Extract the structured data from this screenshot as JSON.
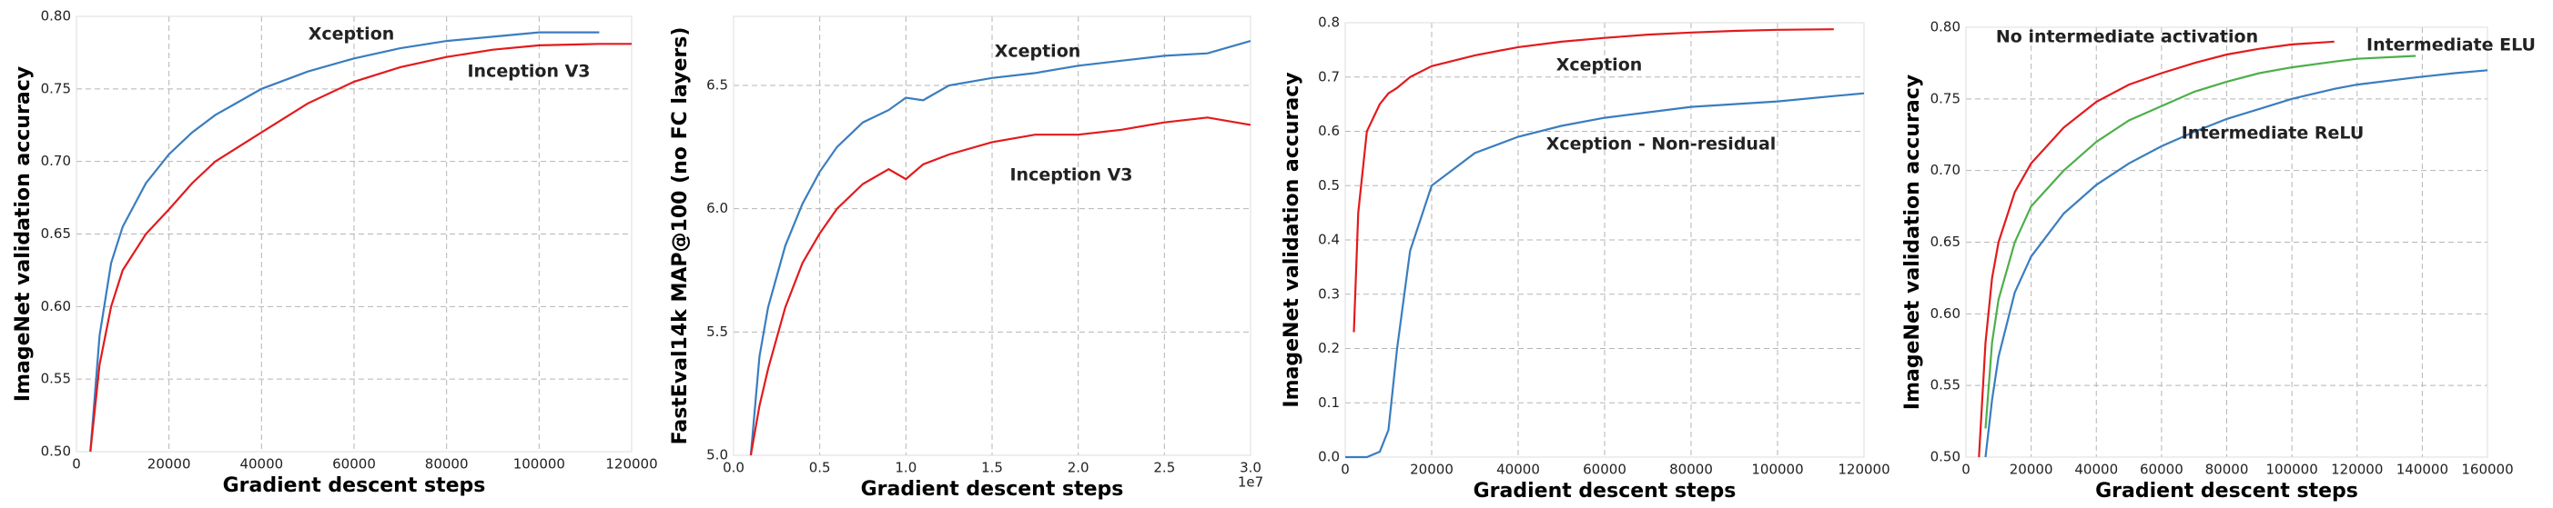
{
  "chart_data": [
    {
      "type": "line",
      "x_label": "Gradient descent steps",
      "y_label": "ImageNet validation accuracy",
      "x": [
        3000,
        5000,
        7500,
        10000,
        15000,
        20000,
        25000,
        30000,
        40000,
        50000,
        60000,
        70000,
        80000,
        90000,
        100000,
        113000,
        120000
      ],
      "xlim": [
        0,
        120000
      ],
      "xticks": [
        0,
        20000,
        40000,
        60000,
        80000,
        100000,
        120000
      ],
      "ylim": [
        0.5,
        0.8
      ],
      "yticks": [
        {
          "value": 0.5,
          "label": "0.50"
        },
        0.55,
        {
          "value": 0.6,
          "label": "0.60"
        },
        0.65,
        {
          "value": 0.7,
          "label": "0.70"
        },
        0.75,
        {
          "value": 0.8,
          "label": "0.80"
        }
      ],
      "grid": true,
      "series": [
        {
          "name": "Xception",
          "color": "#3a7dbf",
          "values": [
            0.5,
            0.58,
            0.63,
            0.655,
            0.685,
            0.705,
            0.72,
            0.732,
            0.75,
            0.762,
            0.771,
            0.778,
            0.783,
            0.786,
            0.789,
            0.789,
            null
          ]
        },
        {
          "name": "Inception V3",
          "color": "#e31a1c",
          "values": [
            0.5,
            0.56,
            0.6,
            0.625,
            0.65,
            0.667,
            0.685,
            0.7,
            0.72,
            0.74,
            0.755,
            0.765,
            0.772,
            0.777,
            0.78,
            0.781,
            0.781
          ]
        }
      ]
    },
    {
      "type": "line",
      "x_label": "Gradient descent steps",
      "y_label": "FastEval14k MAP@100 (no FC layers)",
      "x_offset_label": "1e7",
      "x": [
        0.1,
        0.15,
        0.2,
        0.3,
        0.4,
        0.5,
        0.6,
        0.75,
        0.9,
        1.0,
        1.1,
        1.25,
        1.5,
        1.75,
        2.0,
        2.25,
        2.5,
        2.75,
        3.0
      ],
      "xlim": [
        0,
        3.0
      ],
      "xticks": [
        {
          "value": 0,
          "label": "0.0"
        },
        0.5,
        {
          "value": 1,
          "label": "1.0"
        },
        1.5,
        {
          "value": 2,
          "label": "2.0"
        },
        2.5,
        {
          "value": 3,
          "label": "3.0"
        }
      ],
      "ylim": [
        5.0,
        6.78
      ],
      "yticks": [
        {
          "value": 5,
          "label": "5.0"
        },
        5.5,
        {
          "value": 6,
          "label": "6.0"
        },
        6.5
      ],
      "grid": true,
      "series": [
        {
          "name": "Xception",
          "color": "#3a7dbf",
          "values": [
            5.0,
            5.4,
            5.6,
            5.85,
            6.02,
            6.15,
            6.25,
            6.35,
            6.4,
            6.45,
            6.44,
            6.5,
            6.53,
            6.55,
            6.58,
            6.6,
            6.62,
            6.63,
            6.68
          ]
        },
        {
          "name": "Inception V3",
          "color": "#e31a1c",
          "values": [
            5.0,
            5.2,
            5.35,
            5.6,
            5.78,
            5.9,
            6.0,
            6.1,
            6.16,
            6.12,
            6.18,
            6.22,
            6.27,
            6.3,
            6.3,
            6.32,
            6.35,
            6.37,
            6.34
          ]
        }
      ]
    },
    {
      "type": "line",
      "x_label": "Gradient descent steps",
      "y_label": "ImageNet validation accuracy",
      "x": [
        0,
        2000,
        3000,
        5000,
        8000,
        10000,
        12000,
        15000,
        20000,
        30000,
        40000,
        50000,
        60000,
        70000,
        80000,
        90000,
        100000,
        113000,
        120000
      ],
      "xlim": [
        0,
        120000
      ],
      "xticks": [
        0,
        20000,
        40000,
        60000,
        80000,
        100000,
        120000
      ],
      "ylim": [
        0,
        0.8
      ],
      "yticks": [
        {
          "value": 0,
          "label": "0.0"
        },
        0.1,
        0.2,
        0.3,
        0.4,
        0.5,
        0.6,
        0.7,
        0.8
      ],
      "grid": true,
      "series": [
        {
          "name": "Xception",
          "color": "#e31a1c",
          "values": [
            null,
            0.23,
            0.45,
            0.6,
            0.65,
            0.67,
            0.68,
            0.7,
            0.72,
            0.74,
            0.755,
            0.765,
            0.772,
            0.778,
            0.782,
            0.785,
            0.787,
            0.788,
            null
          ]
        },
        {
          "name": "Xception - Non-residual",
          "color": "#3a7dbf",
          "values": [
            0.0,
            0.0,
            0.0,
            0.0,
            0.01,
            0.05,
            0.2,
            0.38,
            0.5,
            0.56,
            0.59,
            0.61,
            0.625,
            0.635,
            0.645,
            0.65,
            0.655,
            0.665,
            0.67
          ]
        }
      ]
    },
    {
      "type": "line",
      "x_label": "Gradient descent steps",
      "y_label": "ImageNet validation accuracy",
      "x": [
        4000,
        6000,
        8000,
        10000,
        15000,
        20000,
        30000,
        40000,
        50000,
        60000,
        70000,
        80000,
        90000,
        100000,
        113000,
        120000,
        138000,
        150000,
        160000
      ],
      "xlim": [
        0,
        160000
      ],
      "xticks": [
        0,
        20000,
        40000,
        60000,
        80000,
        100000,
        120000,
        140000,
        160000
      ],
      "ylim": [
        0.5,
        0.8
      ],
      "yticks": [
        {
          "value": 0.5,
          "label": "0.50"
        },
        0.55,
        {
          "value": 0.6,
          "label": "0.60"
        },
        0.65,
        {
          "value": 0.7,
          "label": "0.70"
        },
        0.75,
        {
          "value": 0.8,
          "label": "0.80"
        }
      ],
      "grid": true,
      "series": [
        {
          "name": "No intermediate activation",
          "color": "#e31a1c",
          "values": [
            0.5,
            0.58,
            0.625,
            0.65,
            0.685,
            0.705,
            0.73,
            0.748,
            0.76,
            0.768,
            0.775,
            0.781,
            0.785,
            0.788,
            0.79,
            null,
            null,
            null,
            null
          ]
        },
        {
          "name": "Intermediate ELU",
          "color": "#4daf4a",
          "values": [
            null,
            0.52,
            0.58,
            0.61,
            0.65,
            0.675,
            0.7,
            0.72,
            0.735,
            0.745,
            0.755,
            0.762,
            0.768,
            0.772,
            0.776,
            0.778,
            0.78,
            null,
            null
          ]
        },
        {
          "name": "Intermediate ReLU",
          "color": "#3a7dbf",
          "values": [
            null,
            0.5,
            0.54,
            0.57,
            0.615,
            0.64,
            0.67,
            0.69,
            0.705,
            0.717,
            0.727,
            0.736,
            0.743,
            0.75,
            0.757,
            0.76,
            0.765,
            0.768,
            0.77
          ]
        }
      ]
    }
  ]
}
